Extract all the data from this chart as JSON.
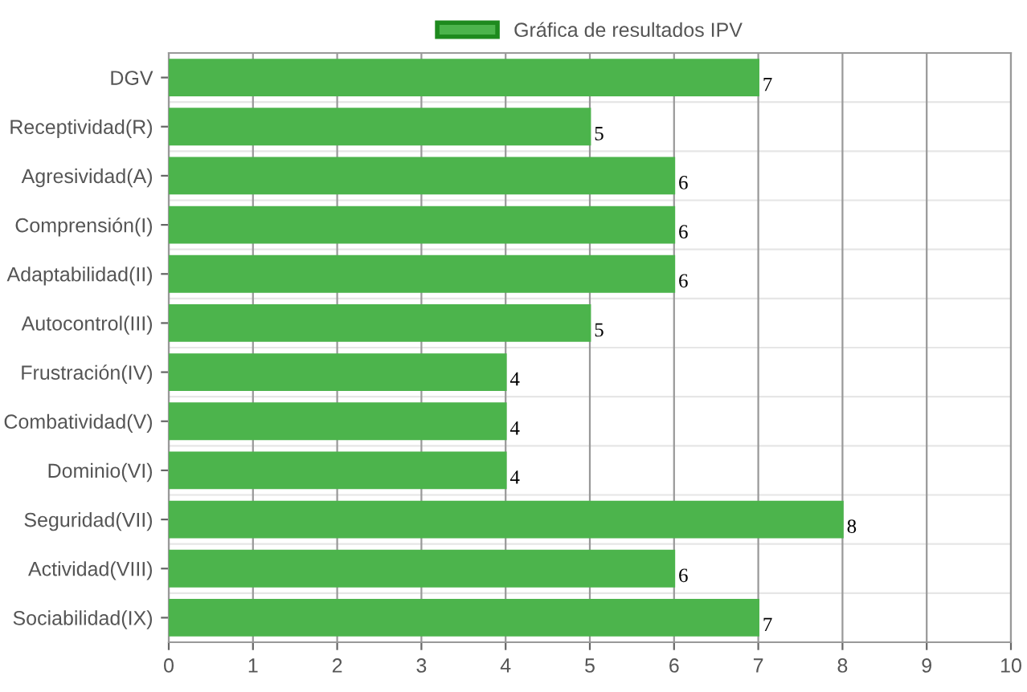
{
  "chart_data": {
    "type": "bar",
    "orientation": "horizontal",
    "categories": [
      "DGV",
      "Receptividad(R)",
      "Agresividad(A)",
      "Comprensión(I)",
      "Adaptabilidad(II)",
      "Autocontrol(III)",
      "Frustración(IV)",
      "Combatividad(V)",
      "Dominio(VI)",
      "Seguridad(VII)",
      "Actividad(VIII)",
      "Sociabilidad(IX)"
    ],
    "series": [
      {
        "name": "Gráfica de resultados IPV",
        "color": "#4cb44c",
        "values": [
          7,
          5,
          6,
          6,
          6,
          5,
          4,
          4,
          4,
          8,
          6,
          7
        ]
      }
    ],
    "xlim": [
      0,
      10
    ],
    "xticks": [
      0,
      1,
      2,
      3,
      4,
      5,
      6,
      7,
      8,
      9,
      10
    ],
    "grid": true,
    "legend": "top",
    "data_labels": true
  }
}
